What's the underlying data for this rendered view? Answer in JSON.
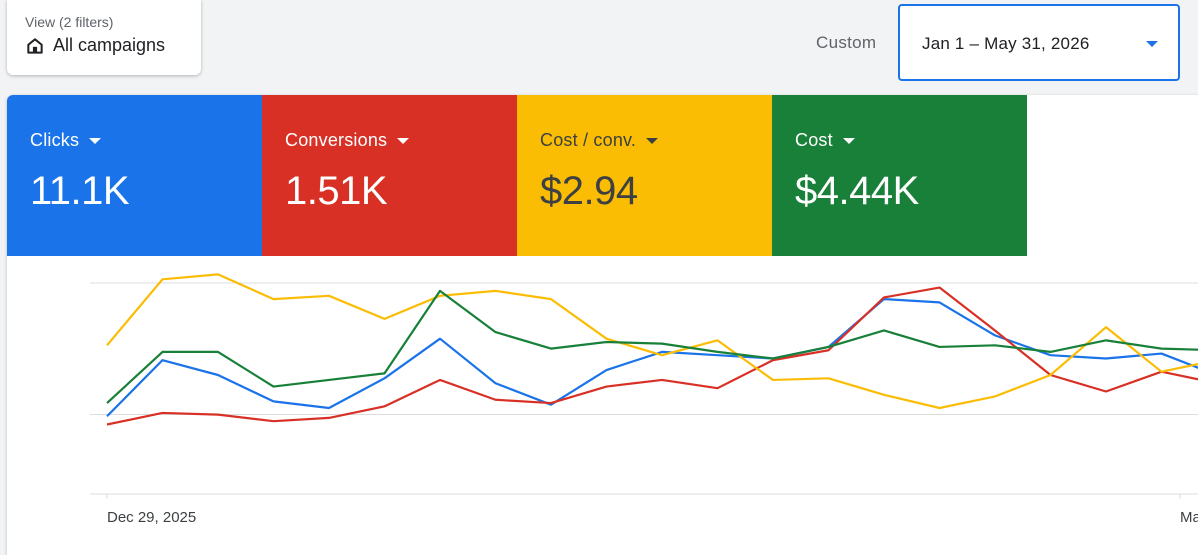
{
  "view_selector": {
    "caption": "View (2 filters)",
    "title": "All campaigns",
    "icon": "home-icon"
  },
  "date_range": {
    "preset_label": "Custom",
    "value": "Jan 1 – May 31, 2026"
  },
  "scorecards": [
    {
      "label": "Clicks",
      "value": "11.1K",
      "color": "#1a73e8",
      "text_color": "#ffffff"
    },
    {
      "label": "Conversions",
      "value": "1.51K",
      "color": "#d93025",
      "text_color": "#ffffff"
    },
    {
      "label": "Cost / conv.",
      "value": "$2.94",
      "color": "#fbbc04",
      "text_color": "#3c4043"
    },
    {
      "label": "Cost",
      "value": "$4.44K",
      "color": "#188038",
      "text_color": "#ffffff"
    }
  ],
  "chart_data": {
    "type": "line",
    "x_tick_labels": [
      "Dec 29, 2025",
      "Ma"
    ],
    "grid": true,
    "ylim": [
      0,
      100
    ],
    "series": [
      {
        "metric": "Clicks",
        "color": "#1a73e8",
        "values": [
          15,
          49,
          40,
          24,
          20,
          38,
          62,
          35,
          22,
          43,
          54,
          52,
          50,
          57,
          86,
          84,
          64,
          52,
          50,
          53,
          40
        ]
      },
      {
        "metric": "Conversions",
        "color": "#d93025",
        "values": [
          10,
          17,
          16,
          12,
          14,
          21,
          37,
          25,
          23,
          33,
          37,
          32,
          49,
          55,
          87,
          93,
          67,
          40,
          30,
          42,
          35
        ]
      },
      {
        "metric": "Cost / conv.",
        "color": "#fbbc04",
        "values": [
          58,
          98,
          101,
          86,
          88,
          74,
          88,
          91,
          86,
          62,
          52,
          61,
          37,
          38,
          28,
          20,
          27,
          40,
          69,
          42,
          49
        ]
      },
      {
        "metric": "Cost",
        "color": "#188038",
        "values": [
          23,
          54,
          54,
          33,
          37,
          41,
          91,
          66,
          56,
          60,
          59,
          54,
          50,
          57,
          67,
          57,
          58,
          54,
          61,
          56,
          55
        ]
      }
    ]
  }
}
